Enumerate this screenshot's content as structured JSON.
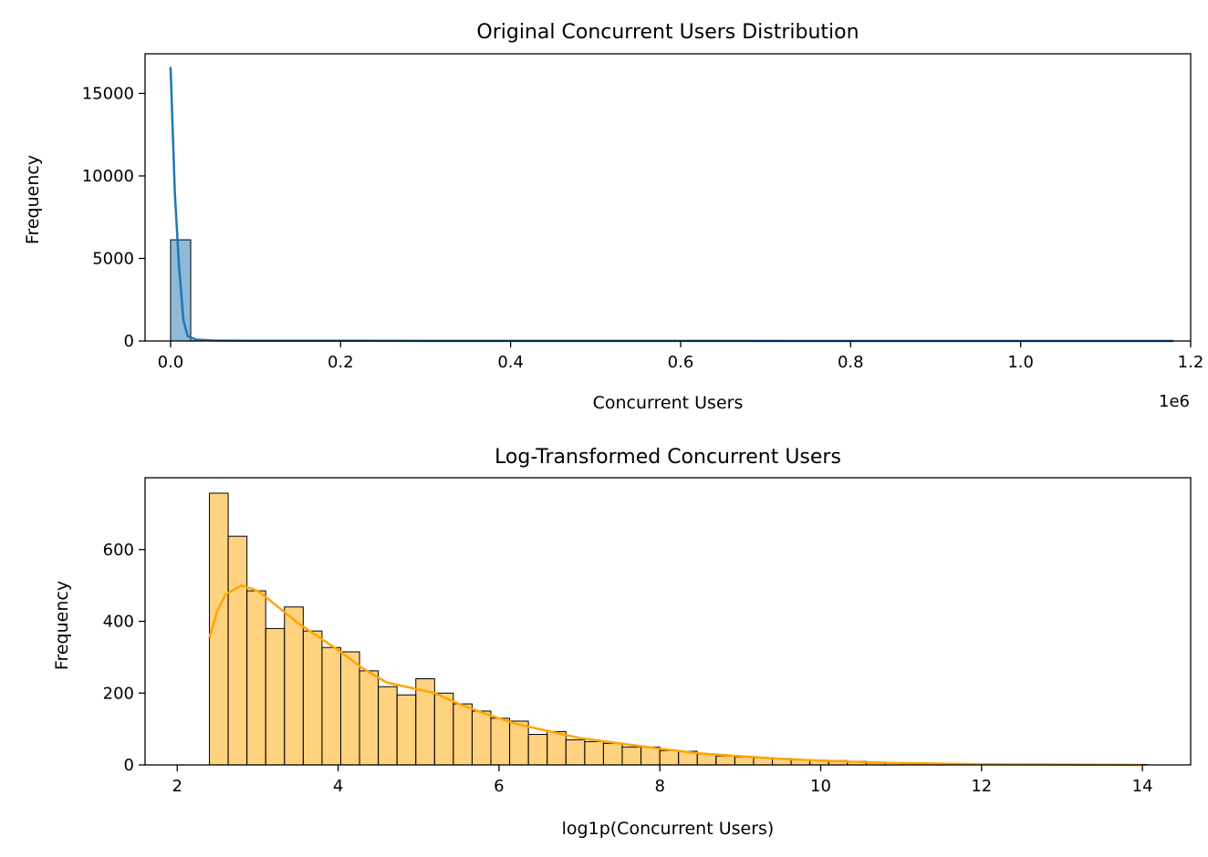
{
  "chart_data": [
    {
      "type": "bar",
      "title": "Original Concurrent Users Distribution",
      "xlabel": "Concurrent Users",
      "ylabel": "Frequency",
      "x_offset_label": "1e6",
      "xlim": [
        -0.03,
        1.2
      ],
      "ylim": [
        0,
        17400
      ],
      "xticks": [
        0.0,
        0.2,
        0.4,
        0.6,
        0.8,
        1.0,
        1.2
      ],
      "xtick_labels": [
        "0.0",
        "0.2",
        "0.4",
        "0.6",
        "0.8",
        "1.0",
        "1.2"
      ],
      "yticks": [
        0,
        5000,
        10000,
        15000
      ],
      "ytick_labels": [
        "0",
        "5000",
        "10000",
        "15000"
      ],
      "bar_color": "#1f77b4",
      "bins": [
        {
          "x0": 0.0,
          "x1": 0.0237,
          "y": 6130
        },
        {
          "x0": 0.0237,
          "x1": 0.0474,
          "y": 15
        }
      ],
      "kde": {
        "color": "#1f77b4",
        "x": [
          0.0,
          0.005,
          0.01,
          0.015,
          0.02,
          0.03,
          0.05,
          0.1,
          0.3,
          0.6,
          0.9,
          1.18
        ],
        "y": [
          16600,
          9000,
          4500,
          1300,
          300,
          80,
          30,
          15,
          8,
          4,
          2,
          1
        ]
      }
    },
    {
      "type": "bar",
      "title": "Log-Transformed Concurrent Users",
      "xlabel": "log1p(Concurrent Users)",
      "ylabel": "Frequency",
      "xlim": [
        1.6,
        14.6
      ],
      "ylim": [
        0,
        800
      ],
      "xticks": [
        2,
        4,
        6,
        8,
        10,
        12,
        14
      ],
      "xtick_labels": [
        "2",
        "4",
        "6",
        "8",
        "10",
        "12",
        "14"
      ],
      "yticks": [
        0,
        200,
        400,
        600
      ],
      "ytick_labels": [
        "0",
        "200",
        "400",
        "600"
      ],
      "bar_color": "#ffa500",
      "bin_start": 2.4,
      "bin_width": 0.2333,
      "values": [
        757,
        637,
        485,
        380,
        440,
        373,
        327,
        315,
        262,
        218,
        195,
        240,
        200,
        170,
        150,
        130,
        122,
        85,
        93,
        70,
        65,
        60,
        50,
        50,
        40,
        38,
        30,
        25,
        22,
        20,
        18,
        15,
        13,
        12,
        10,
        6,
        5,
        4,
        3,
        2,
        2,
        1,
        1,
        1,
        1,
        1,
        1,
        0,
        0,
        1
      ],
      "kde": {
        "color": "#ffa500",
        "x": [
          2.4,
          2.5,
          2.6,
          2.8,
          3.0,
          3.2,
          3.5,
          3.8,
          4.0,
          4.3,
          4.6,
          4.9,
          5.2,
          5.5,
          5.8,
          6.2,
          6.6,
          7.0,
          7.5,
          8.0,
          8.5,
          9.0,
          9.5,
          10.0,
          10.5,
          11.0,
          12.0,
          13.0,
          14.0
        ],
        "y": [
          355,
          430,
          475,
          500,
          485,
          450,
          395,
          350,
          320,
          270,
          230,
          215,
          200,
          170,
          145,
          115,
          95,
          75,
          60,
          45,
          32,
          24,
          17,
          12,
          8,
          5,
          2,
          1,
          0
        ]
      }
    }
  ]
}
